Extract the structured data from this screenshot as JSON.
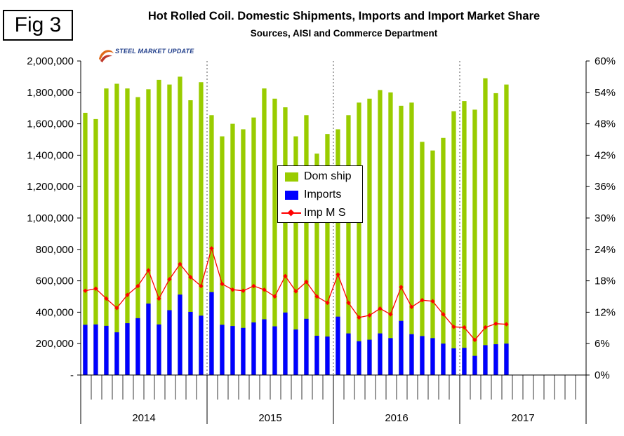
{
  "figure_label": "Fig 3",
  "logo": {
    "text": "STEEL MARKET UPDATE",
    "accent": "#e06a1a",
    "color": "#1f3d8a"
  },
  "colors": {
    "dom": "#99cc00",
    "imp": "#0000ff",
    "ms": "#ff0000"
  },
  "chart_data": {
    "type": "bar",
    "title": "Hot Rolled Coil. Domestic Shipments, Imports and Import Market Share",
    "subtitle": "Sources, AISI and Commerce Department",
    "years": [
      "2014",
      "2015",
      "2016",
      "2017"
    ],
    "left_axis": {
      "min": 0,
      "max": 2000000,
      "ticks": [
        "-",
        "200,000",
        "400,000",
        "600,000",
        "800,000",
        "1,000,000",
        "1,200,000",
        "1,400,000",
        "1,600,000",
        "1,800,000",
        "2,000,000"
      ]
    },
    "right_axis": {
      "min": 0,
      "max": 60,
      "unit": "%",
      "ticks": [
        "0%",
        "6%",
        "12%",
        "18%",
        "24%",
        "30%",
        "36%",
        "42%",
        "48%",
        "54%",
        "60%"
      ]
    },
    "months_per_year": 12,
    "legend": [
      "Dom ship",
      "Imports",
      "Imp M S"
    ],
    "series": [
      {
        "name": "Dom ship",
        "type": "bar",
        "values": [
          1670000,
          1630000,
          1825000,
          1855000,
          1825000,
          1770000,
          1820000,
          1880000,
          1850000,
          1900000,
          1750000,
          1865000,
          1655000,
          1520000,
          1600000,
          1565000,
          1640000,
          1825000,
          1760000,
          1705000,
          1520000,
          1655000,
          1410000,
          1535000,
          1565000,
          1655000,
          1735000,
          1760000,
          1815000,
          1800000,
          1715000,
          1735000,
          1485000,
          1430000,
          1510000,
          1680000,
          1745000,
          1690000,
          1890000,
          1795000,
          1850000
        ]
      },
      {
        "name": "Imports",
        "type": "bar",
        "values": [
          320000,
          322000,
          313000,
          272000,
          330000,
          362000,
          455000,
          322000,
          413000,
          512000,
          402000,
          378000,
          528000,
          320000,
          312000,
          300000,
          335000,
          355000,
          310000,
          398000,
          290000,
          358000,
          250000,
          245000,
          372000,
          265000,
          215000,
          225000,
          265000,
          235000,
          345000,
          260000,
          248000,
          235000,
          200000,
          170000,
          173000,
          122000,
          190000,
          196000,
          200000
        ]
      },
      {
        "name": "Imp M S",
        "type": "line",
        "unit": "%",
        "values": [
          16.1,
          16.5,
          14.6,
          12.8,
          15.3,
          17.0,
          20.0,
          14.6,
          18.3,
          21.2,
          18.7,
          17.0,
          24.2,
          17.4,
          16.3,
          16.1,
          17.0,
          16.3,
          15.0,
          18.9,
          16.0,
          17.8,
          15.0,
          13.8,
          19.2,
          13.8,
          11.0,
          11.4,
          12.7,
          11.6,
          16.8,
          13.0,
          14.3,
          14.1,
          11.6,
          9.2,
          9.1,
          6.7,
          9.1,
          9.8,
          9.7
        ]
      }
    ]
  }
}
